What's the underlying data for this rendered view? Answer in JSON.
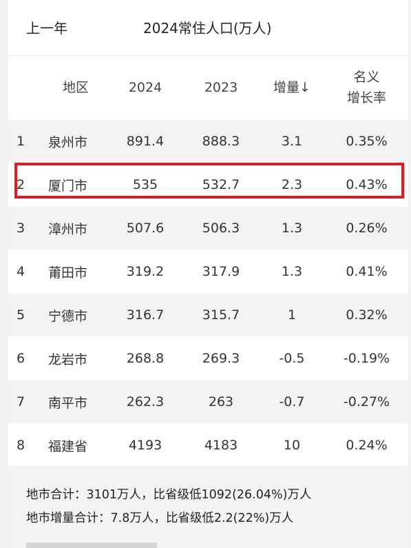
{
  "header": {
    "prev_year": "上一年",
    "title": "2024常住人口(万人)"
  },
  "table": {
    "columns": {
      "region": "地区",
      "y2024": "2024",
      "y2023": "2023",
      "increase": "增量↓",
      "growth_line1": "名义",
      "growth_line2": "增长率"
    },
    "rows": [
      {
        "rank": "1",
        "region": "泉州市",
        "y2024": "891.4",
        "y2023": "888.3",
        "increase": "3.1",
        "growth": "0.35%"
      },
      {
        "rank": "2",
        "region": "厦门市",
        "y2024": "535",
        "y2023": "532.7",
        "increase": "2.3",
        "growth": "0.43%"
      },
      {
        "rank": "3",
        "region": "漳州市",
        "y2024": "507.6",
        "y2023": "506.3",
        "increase": "1.3",
        "growth": "0.26%"
      },
      {
        "rank": "4",
        "region": "莆田市",
        "y2024": "319.2",
        "y2023": "317.9",
        "increase": "1.3",
        "growth": "0.41%"
      },
      {
        "rank": "5",
        "region": "宁德市",
        "y2024": "316.7",
        "y2023": "315.7",
        "increase": "1",
        "growth": "0.32%"
      },
      {
        "rank": "6",
        "region": "龙岩市",
        "y2024": "268.8",
        "y2023": "269.3",
        "increase": "-0.5",
        "growth": "-0.19%"
      },
      {
        "rank": "7",
        "region": "南平市",
        "y2024": "262.3",
        "y2023": "263",
        "increase": "-0.7",
        "growth": "-0.27%"
      },
      {
        "rank": "8",
        "region": "福建省",
        "y2024": "4193",
        "y2023": "4183",
        "increase": "10",
        "growth": "0.24%"
      }
    ]
  },
  "summary": {
    "line1": "地市合计：3101万人，比省级低1092(26.04%)万人",
    "line2": "地市增量合计：7.8万人，比省级低2.2(22%)万人"
  },
  "colors": {
    "highlight_border": "#e11b22",
    "stripe": "#f3f3f3"
  }
}
